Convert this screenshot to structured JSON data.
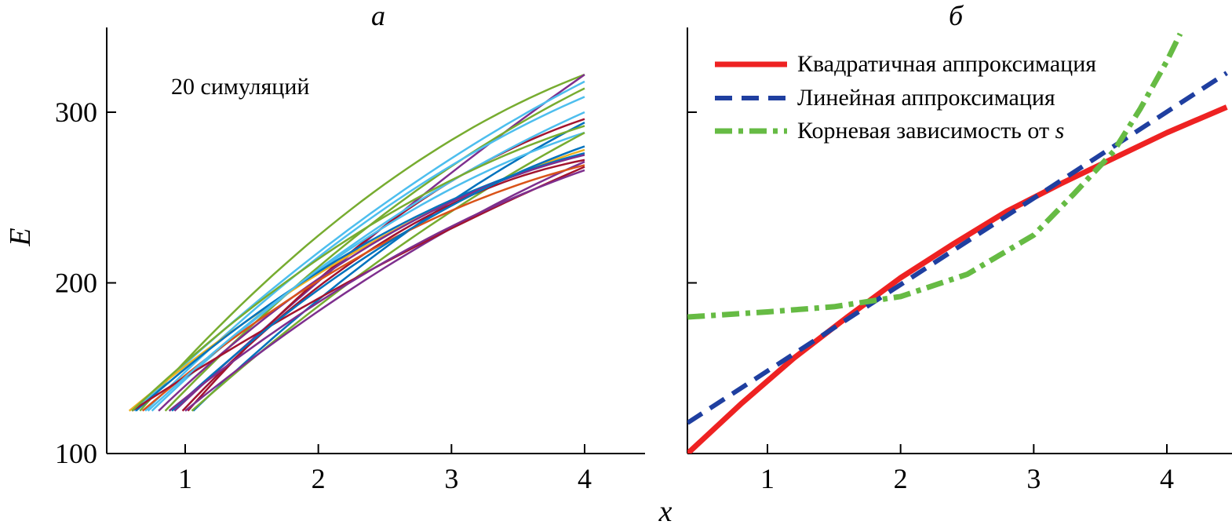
{
  "chart_data": [
    {
      "type": "line",
      "panel": "a",
      "title": "а",
      "xlabel": "x",
      "ylabel": "E",
      "xlim": [
        0.4,
        4.4
      ],
      "ylim": [
        100,
        350
      ],
      "xticks": [
        1,
        2,
        3,
        4
      ],
      "xtick_labels": [
        "1",
        "2",
        "3",
        "4"
      ],
      "yticks": [
        100,
        200,
        300
      ],
      "ytick_labels": [
        "100",
        "200",
        "300"
      ],
      "annotation": "20 симуляций",
      "series": [
        {
          "name": "sim1",
          "color": "#77ac30",
          "x0": 0.66,
          "y0": 125,
          "y_end": 322,
          "a": 0.5
        },
        {
          "name": "sim2",
          "color": "#7e2f8e",
          "x0": 0.92,
          "y0": 125,
          "y_end": 322,
          "a": 0.15
        },
        {
          "name": "sim3",
          "color": "#4dbeee",
          "x0": 0.62,
          "y0": 125,
          "y_end": 318,
          "a": 0.3
        },
        {
          "name": "sim4",
          "color": "#77ac30",
          "x0": 0.85,
          "y0": 125,
          "y_end": 314,
          "a": 0.35
        },
        {
          "name": "sim5",
          "color": "#4dbeee",
          "x0": 0.7,
          "y0": 125,
          "y_end": 309,
          "a": 0.4
        },
        {
          "name": "sim6",
          "color": "#a2142f",
          "x0": 1.02,
          "y0": 125,
          "y_end": 296,
          "a": 0.55
        },
        {
          "name": "sim7",
          "color": "#0072bd",
          "x0": 1.06,
          "y0": 125,
          "y_end": 294,
          "a": 0.3
        },
        {
          "name": "sim8",
          "color": "#4dbeee",
          "x0": 0.75,
          "y0": 125,
          "y_end": 288,
          "a": 0.5
        },
        {
          "name": "sim9",
          "color": "#77ac30",
          "x0": 1.05,
          "y0": 125,
          "y_end": 288,
          "a": 0.25
        },
        {
          "name": "sim10",
          "color": "#edb120",
          "x0": 0.58,
          "y0": 125,
          "y_end": 278,
          "a": 0.45
        },
        {
          "name": "sim11",
          "color": "#0072bd",
          "x0": 0.63,
          "y0": 125,
          "y_end": 276,
          "a": 0.55
        },
        {
          "name": "sim12",
          "color": "#7e2f8e",
          "x0": 0.8,
          "y0": 125,
          "y_end": 275,
          "a": 0.6
        },
        {
          "name": "sim13",
          "color": "#a2142f",
          "x0": 0.98,
          "y0": 125,
          "y_end": 272,
          "a": 0.7
        },
        {
          "name": "sim14",
          "color": "#7e2f8e",
          "x0": 1.0,
          "y0": 125,
          "y_end": 271,
          "a": 0.3
        },
        {
          "name": "sim15",
          "color": "#d95319",
          "x0": 0.68,
          "y0": 125,
          "y_end": 269,
          "a": 0.55
        },
        {
          "name": "sim16",
          "color": "#a2142f",
          "x0": 0.6,
          "y0": 125,
          "y_end": 268,
          "a": 0.2
        },
        {
          "name": "sim17",
          "color": "#0072bd",
          "x0": 0.9,
          "y0": 125,
          "y_end": 280,
          "a": 0.45
        },
        {
          "name": "sim18",
          "color": "#4dbeee",
          "x0": 0.72,
          "y0": 125,
          "y_end": 300,
          "a": 0.35
        },
        {
          "name": "sim19",
          "color": "#77ac30",
          "x0": 0.6,
          "y0": 125,
          "y_end": 292,
          "a": 0.5
        },
        {
          "name": "sim20",
          "color": "#7e2f8e",
          "x0": 0.88,
          "y0": 125,
          "y_end": 266,
          "a": 0.4
        }
      ]
    },
    {
      "type": "line",
      "panel": "б",
      "title": "б",
      "xlabel": "x",
      "ylabel": "E",
      "xlim": [
        0.4,
        4.45
      ],
      "ylim": [
        100,
        350
      ],
      "xticks": [
        1,
        2,
        3,
        4
      ],
      "xtick_labels": [
        "1",
        "2",
        "3",
        "4"
      ],
      "yticks": [
        100,
        200,
        300
      ],
      "legend_position": "top-left",
      "series": [
        {
          "name": "Квадратичная аппроксимация",
          "color": "#ee2222",
          "dash": "solid",
          "x": [
            0.4,
            0.8,
            1.2,
            1.6,
            2.0,
            2.4,
            2.8,
            3.2,
            3.6,
            4.0,
            4.45
          ],
          "y": [
            100,
            129,
            156,
            180,
            203,
            223,
            242,
            258,
            273,
            288,
            303
          ]
        },
        {
          "name": "Линейная аппроксимация",
          "color": "#1f3fa0",
          "dash": "dashed",
          "x": [
            0.4,
            4.45
          ],
          "y": [
            118,
            323
          ]
        },
        {
          "name": "Корневая зависимость от",
          "name_suffix": "s",
          "color": "#66bb44",
          "dash": "dashdot",
          "x": [
            0.4,
            1.0,
            1.5,
            2.0,
            2.5,
            3.0,
            3.3,
            3.6,
            3.8,
            4.0,
            4.1
          ],
          "y": [
            180,
            183,
            186,
            192,
            205,
            228,
            252,
            277,
            302,
            330,
            346
          ]
        }
      ]
    }
  ]
}
